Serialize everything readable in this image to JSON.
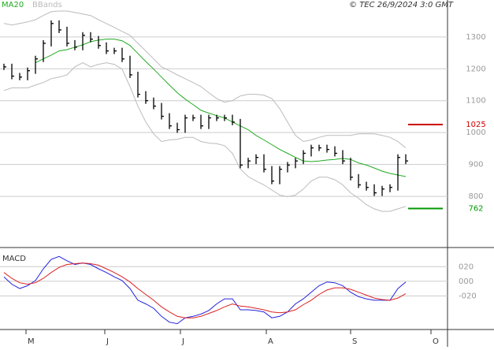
{
  "copyright": "© TEC 26/9/2024 3:0 GMT",
  "chart_data": [
    {
      "type": "price",
      "x": [
        0,
        1,
        2,
        3,
        4,
        5,
        6,
        7,
        8,
        9,
        10,
        11,
        12,
        13,
        14,
        15,
        16,
        17,
        18,
        19,
        20,
        21,
        22,
        23,
        24,
        25,
        26,
        27,
        28,
        29,
        30,
        31,
        32,
        33,
        34,
        35,
        36,
        37,
        38,
        39,
        40,
        41,
        42,
        43,
        44,
        45,
        46,
        47,
        48,
        49,
        50,
        51
      ],
      "xlim": [
        -0.5,
        56.3
      ],
      "values": [
        1206,
        1177,
        1174,
        1194,
        1231,
        1280,
        1342,
        1322,
        1280,
        1268,
        1305,
        1293,
        1273,
        1256,
        1256,
        1231,
        1181,
        1120,
        1100,
        1083,
        1051,
        1021,
        1009,
        1046,
        1046,
        1021,
        1046,
        1046,
        1046,
        1033,
        898,
        911,
        922,
        885,
        848,
        885,
        898,
        911,
        935,
        952,
        952,
        947,
        935,
        911,
        860,
        836,
        828,
        811,
        823,
        828,
        922,
        911
      ],
      "color": "#000000",
      "series": [
        {
          "name": "MA20",
          "color": "#22aa22",
          "values": [
            null,
            null,
            null,
            null,
            1219,
            1231,
            1243,
            1256,
            1260,
            1268,
            1275,
            1285,
            1290,
            1293,
            1293,
            1288,
            1273,
            1248,
            1223,
            1199,
            1174,
            1149,
            1125,
            1105,
            1088,
            1070,
            1061,
            1053,
            1046,
            1033,
            1021,
            1009,
            991,
            977,
            962,
            947,
            935,
            922,
            911,
            909,
            911,
            914,
            916,
            919,
            916,
            905,
            898,
            889,
            879,
            872,
            867,
            862
          ]
        }
      ],
      "bands": {
        "name": "BBands",
        "color": "#bbbbbb",
        "upper": [
          1342,
          1337,
          1342,
          1347,
          1354,
          1367,
          1379,
          1381,
          1381,
          1377,
          1372,
          1367,
          1354,
          1342,
          1330,
          1317,
          1305,
          1280,
          1256,
          1231,
          1206,
          1194,
          1181,
          1169,
          1157,
          1144,
          1125,
          1107,
          1095,
          1100,
          1115,
          1120,
          1120,
          1117,
          1107,
          1075,
          1033,
          991,
          972,
          977,
          985,
          991,
          991,
          991,
          991,
          996,
          996,
          996,
          991,
          985,
          972,
          952
        ],
        "lower": [
          1132,
          1140,
          1140,
          1140,
          1149,
          1157,
          1169,
          1174,
          1181,
          1206,
          1219,
          1206,
          1214,
          1219,
          1214,
          1199,
          1144,
          1083,
          1033,
          996,
          972,
          977,
          979,
          985,
          985,
          972,
          967,
          965,
          959,
          935,
          886,
          862,
          848,
          836,
          820,
          804,
          799,
          804,
          823,
          848,
          860,
          860,
          852,
          836,
          811,
          794,
          774,
          761,
          753,
          753,
          761,
          768
        ]
      },
      "levels": [
        {
          "value": 1025,
          "color": "#cc0000"
        },
        {
          "value": 762,
          "color": "#009900"
        }
      ],
      "ylim": [
        642,
        1391
      ],
      "yticks": [
        800,
        900,
        1000,
        1100,
        1200,
        1300
      ],
      "grid": true
    },
    {
      "type": "macd",
      "title": "MACD",
      "series": [
        {
          "color": "#2222dd",
          "values": [
            6,
            -4,
            -10,
            -6,
            1,
            17,
            30,
            34,
            28,
            23,
            25,
            23,
            17,
            12,
            6,
            1,
            -10,
            -26,
            -31,
            -37,
            -48,
            -56,
            -58,
            -50,
            -48,
            -45,
            -40,
            -31,
            -24,
            -24,
            -39,
            -39,
            -40,
            -42,
            -50,
            -48,
            -42,
            -31,
            -24,
            -15,
            -6,
            -1,
            -2,
            -6,
            -15,
            -21,
            -24,
            -26,
            -26,
            -26,
            -10,
            -1
          ]
        },
        {
          "color": "#dd2222",
          "values": [
            12,
            4,
            -2,
            -4,
            -2,
            4,
            12,
            19,
            23,
            24,
            25,
            24,
            22,
            17,
            12,
            6,
            -1,
            -10,
            -18,
            -26,
            -35,
            -42,
            -48,
            -50,
            -50,
            -48,
            -44,
            -40,
            -35,
            -31,
            -34,
            -35,
            -37,
            -39,
            -42,
            -43,
            -42,
            -39,
            -32,
            -26,
            -18,
            -12,
            -9,
            -9,
            -11,
            -15,
            -19,
            -23,
            -25,
            -26,
            -23,
            -17
          ]
        }
      ],
      "ylim": [
        -66,
        44
      ],
      "yticks": [
        {
          "value": 20,
          "label": "020"
        },
        {
          "value": 0,
          "label": "000"
        },
        {
          "value": -20,
          "label": "-020"
        }
      ],
      "xticks": [
        {
          "value": 2.8,
          "label": "M"
        },
        {
          "value": 12.8,
          "label": "J"
        },
        {
          "value": 22.4,
          "label": "J"
        },
        {
          "value": 33.3,
          "label": "A"
        },
        {
          "value": 44,
          "label": "S"
        },
        {
          "value": 54.2,
          "label": "O"
        }
      ],
      "grid": true
    }
  ]
}
